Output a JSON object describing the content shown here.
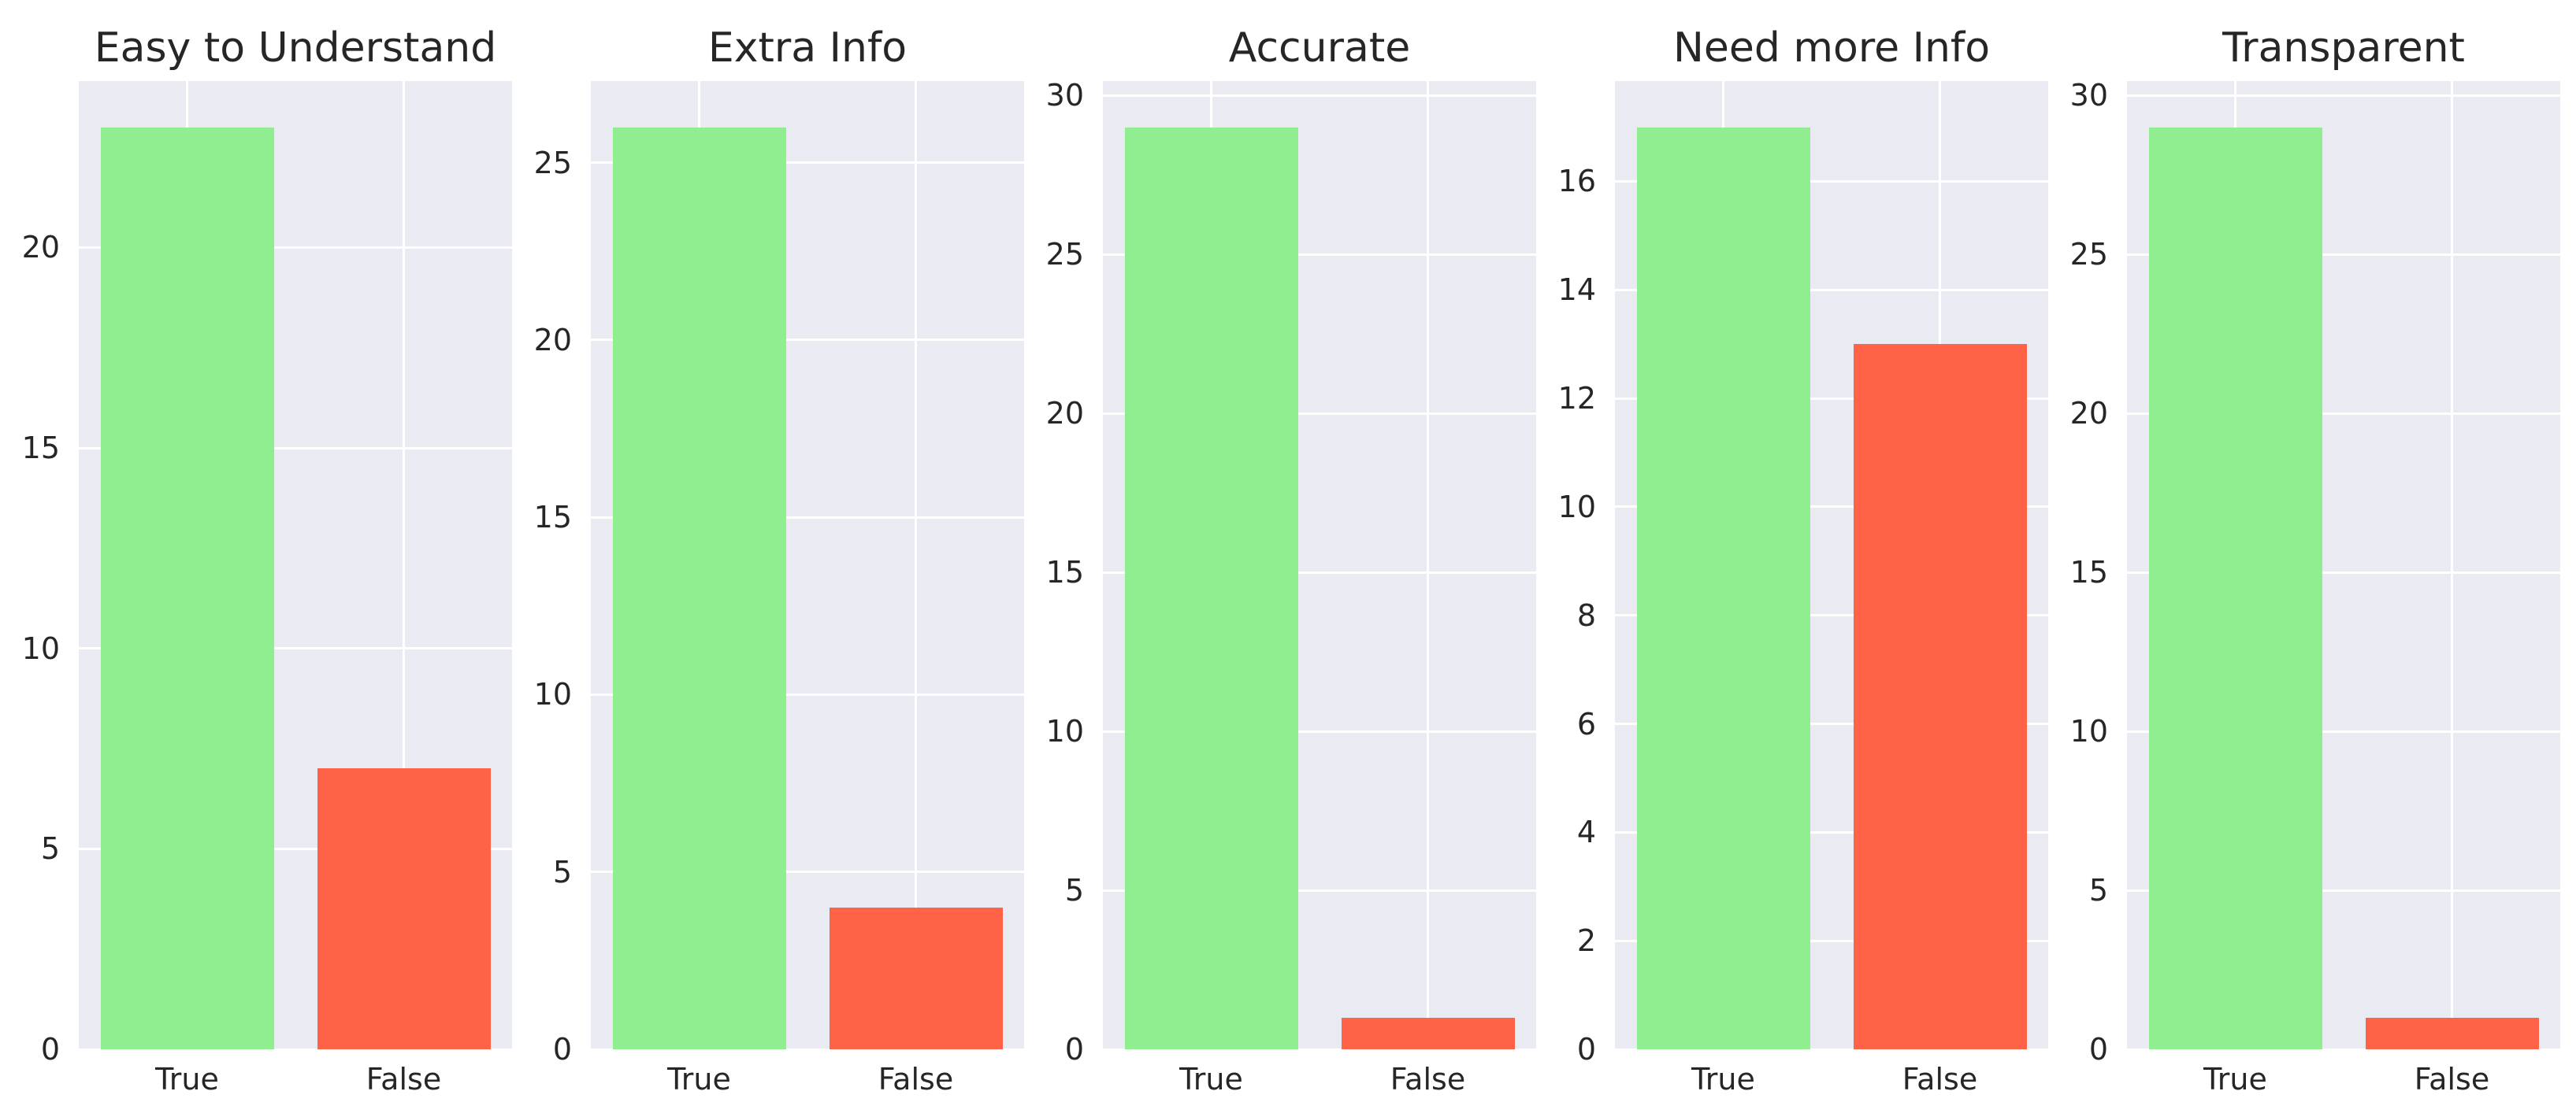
{
  "figure": {
    "background": "#ffffff",
    "panel_background": "#eaeaf2",
    "grid_color": "#ffffff",
    "text_color": "#262626",
    "true_bar_color": "#90ee90",
    "false_bar_color": "#ff6347",
    "style": "seaborn-darkgrid, no spines, no tick marks"
  },
  "chart_data": [
    {
      "type": "bar",
      "title": "Easy to Understand",
      "categories": [
        "True",
        "False"
      ],
      "values": [
        23,
        7
      ],
      "bar_colors": [
        "#90ee90",
        "#ff6347"
      ],
      "xlabel": "",
      "ylabel": "",
      "yticks": [
        0,
        5,
        10,
        15,
        20
      ],
      "ylim": [
        0,
        24.15
      ],
      "grid": true,
      "legend": "none"
    },
    {
      "type": "bar",
      "title": "Extra Info",
      "categories": [
        "True",
        "False"
      ],
      "values": [
        26,
        4
      ],
      "bar_colors": [
        "#90ee90",
        "#ff6347"
      ],
      "xlabel": "",
      "ylabel": "",
      "yticks": [
        0,
        5,
        10,
        15,
        20,
        25
      ],
      "ylim": [
        0,
        27.3
      ],
      "grid": true,
      "legend": "none"
    },
    {
      "type": "bar",
      "title": "Accurate",
      "categories": [
        "True",
        "False"
      ],
      "values": [
        29,
        1
      ],
      "bar_colors": [
        "#90ee90",
        "#ff6347"
      ],
      "xlabel": "",
      "ylabel": "",
      "yticks": [
        0,
        5,
        10,
        15,
        20,
        25,
        30
      ],
      "ylim": [
        0,
        30.45
      ],
      "grid": true,
      "legend": "none"
    },
    {
      "type": "bar",
      "title": "Need more Info",
      "categories": [
        "True",
        "False"
      ],
      "values": [
        17,
        13
      ],
      "bar_colors": [
        "#90ee90",
        "#ff6347"
      ],
      "xlabel": "",
      "ylabel": "",
      "yticks": [
        0,
        2,
        4,
        6,
        8,
        10,
        12,
        14,
        16
      ],
      "ylim": [
        0,
        17.85
      ],
      "grid": true,
      "legend": "none"
    },
    {
      "type": "bar",
      "title": "Transparent",
      "categories": [
        "True",
        "False"
      ],
      "values": [
        29,
        1
      ],
      "bar_colors": [
        "#90ee90",
        "#ff6347"
      ],
      "xlabel": "",
      "ylabel": "",
      "yticks": [
        0,
        5,
        10,
        15,
        20,
        25,
        30
      ],
      "ylim": [
        0,
        30.45
      ],
      "grid": true,
      "legend": "none"
    }
  ]
}
